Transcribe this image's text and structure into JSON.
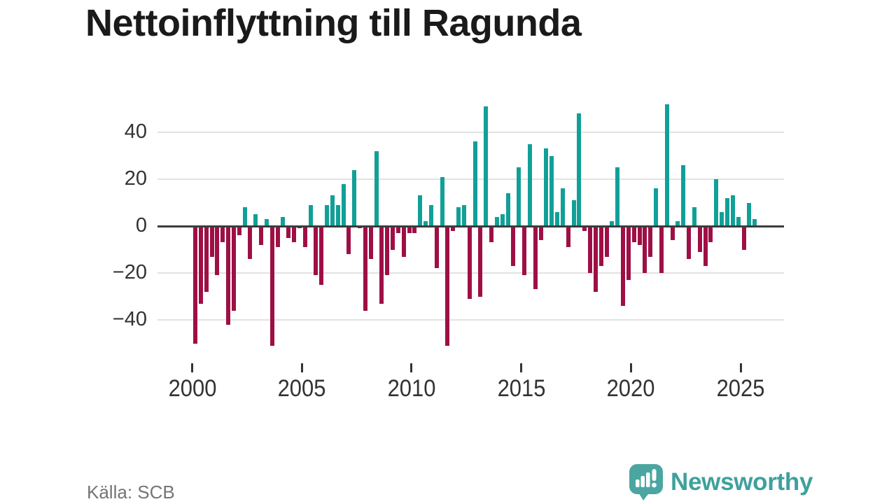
{
  "title": "Nettoinflyttning till Ragunda",
  "source": "Källa: SCB",
  "logo": {
    "text": "Newsworthy"
  },
  "chart_data": {
    "type": "bar",
    "title": "Nettoinflyttning till Ragunda",
    "ylabel": "",
    "xlabel": "",
    "frequency": "quarterly",
    "start_period": "2000-Q1",
    "end_period": "2025-Q3",
    "y_ticks": [
      40,
      20,
      0,
      -20,
      -40
    ],
    "ylim": [
      -55,
      57
    ],
    "x_tick_labels": [
      "2000",
      "2005",
      "2010",
      "2015",
      "2020",
      "2025"
    ],
    "grid": true,
    "legend": false,
    "colors": {
      "positive": "#10a098",
      "negative": "#9e1045"
    },
    "years": [
      {
        "year": 2000,
        "values": [
          -50,
          -33,
          -28,
          -13
        ]
      },
      {
        "year": 2001,
        "values": [
          -21,
          -7,
          -42,
          -36
        ]
      },
      {
        "year": 2002,
        "values": [
          -4,
          8,
          -14,
          5
        ]
      },
      {
        "year": 2003,
        "values": [
          -8,
          3,
          -51,
          -9
        ]
      },
      {
        "year": 2004,
        "values": [
          4,
          -5,
          -7,
          -1
        ]
      },
      {
        "year": 2005,
        "values": [
          -9,
          9,
          -21,
          -25
        ]
      },
      {
        "year": 2006,
        "values": [
          9,
          13,
          9,
          18
        ]
      },
      {
        "year": 2007,
        "values": [
          -12,
          24,
          -1,
          -36
        ]
      },
      {
        "year": 2008,
        "values": [
          -14,
          32,
          -33,
          -21
        ]
      },
      {
        "year": 2009,
        "values": [
          -10,
          -3,
          -13,
          -3
        ]
      },
      {
        "year": 2010,
        "values": [
          -3,
          13,
          2,
          9
        ]
      },
      {
        "year": 2011,
        "values": [
          -18,
          21,
          -51,
          -2
        ]
      },
      {
        "year": 2012,
        "values": [
          8,
          9,
          -31,
          36
        ]
      },
      {
        "year": 2013,
        "values": [
          -30,
          51,
          -7,
          4
        ]
      },
      {
        "year": 2014,
        "values": [
          5,
          14,
          -17,
          25
        ]
      },
      {
        "year": 2015,
        "values": [
          -21,
          35,
          -27,
          -6
        ]
      },
      {
        "year": 2016,
        "values": [
          33,
          30,
          6,
          16
        ]
      },
      {
        "year": 2017,
        "values": [
          -9,
          11,
          48,
          -2
        ]
      },
      {
        "year": 2018,
        "values": [
          -20,
          -28,
          -17,
          -13
        ]
      },
      {
        "year": 2019,
        "values": [
          2,
          25,
          -34,
          -23
        ]
      },
      {
        "year": 2020,
        "values": [
          -7,
          -8,
          -20,
          -13
        ]
      },
      {
        "year": 2021,
        "values": [
          16,
          -20,
          52,
          -6
        ]
      },
      {
        "year": 2022,
        "values": [
          2,
          26,
          -14,
          8
        ]
      },
      {
        "year": 2023,
        "values": [
          -11,
          -17,
          -7,
          20
        ]
      },
      {
        "year": 2024,
        "values": [
          6,
          12,
          13,
          4
        ]
      },
      {
        "year": 2025,
        "values": [
          -10,
          10,
          3
        ]
      }
    ]
  }
}
